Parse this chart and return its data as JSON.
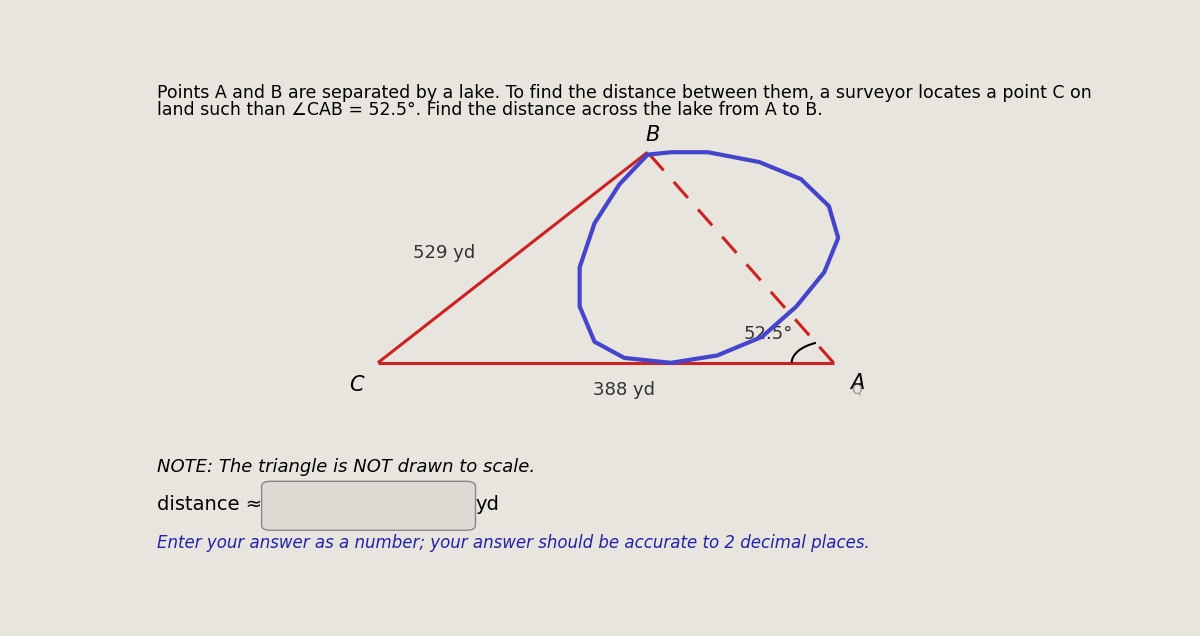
{
  "title_line1": "Points A and B are separated by a lake. To find the distance between them, a surveyor locates a point C on",
  "title_line2": "land such than ∠CAB = 52.5°. Find the distance across the lake from A to B.",
  "label_CA": "388 yd",
  "label_CB": "529 yd",
  "label_angle": "52.5°",
  "label_A": "A",
  "label_B": "B",
  "label_C": "C",
  "note": "NOTE: The triangle is NOT drawn to scale.",
  "distance_label": "distance ≈",
  "unit": "yd",
  "bottom_text": "Enter your answer as a number; your answer should be accurate to 2 decimal places.",
  "bg_color": "#e8e4de",
  "triangle_color": "#cc2222",
  "lake_color": "#4444cc",
  "dashed_color": "#cc2222",
  "A": [
    0.735,
    0.415
  ],
  "B": [
    0.535,
    0.845
  ],
  "C": [
    0.245,
    0.415
  ]
}
